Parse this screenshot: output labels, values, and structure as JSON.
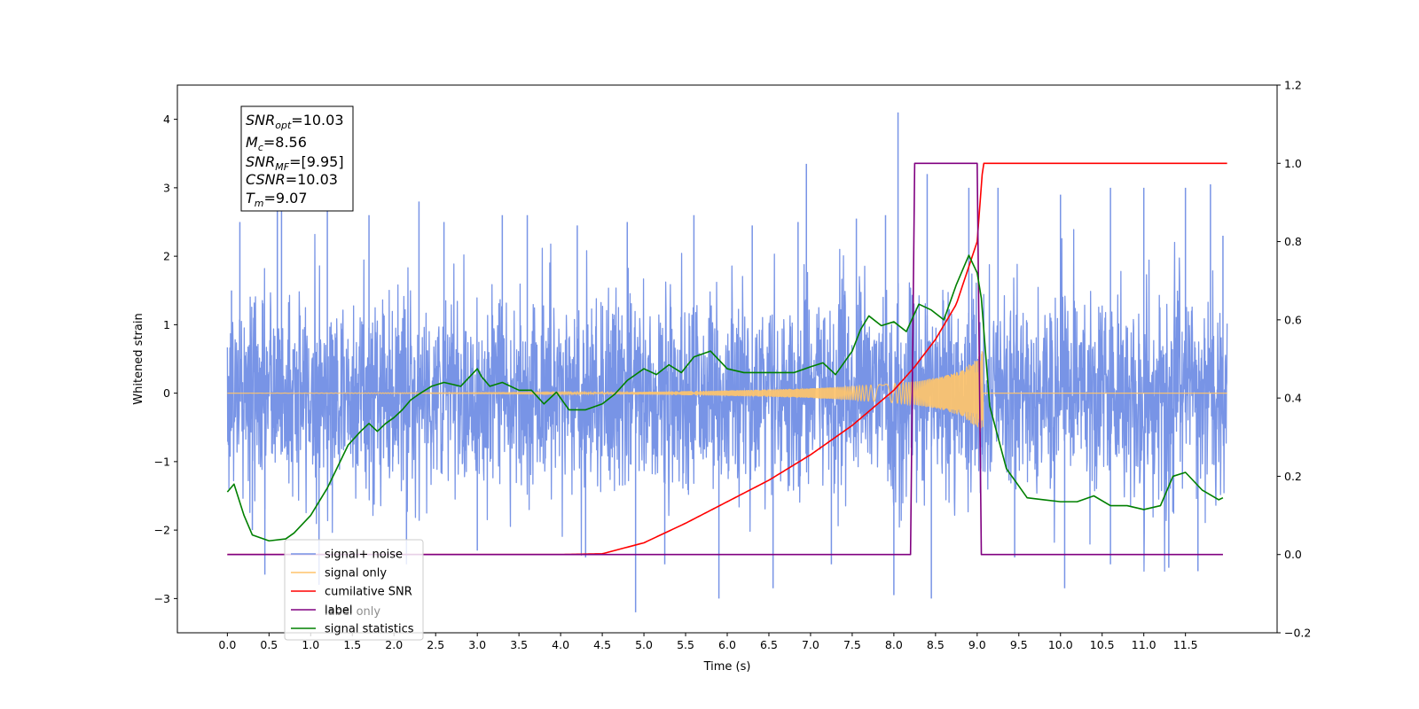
{
  "chart_data": {
    "type": "line",
    "xlabel": "Time (s)",
    "ylabel": "Whitened strain",
    "xlim": [
      -0.6,
      12.6
    ],
    "ylim": [
      -3.5,
      4.5
    ],
    "y2lim": [
      -0.2,
      1.2
    ],
    "x_ticks": [
      0.0,
      0.5,
      1.0,
      1.5,
      2.0,
      2.5,
      3.0,
      3.5,
      4.0,
      4.5,
      5.0,
      5.5,
      6.0,
      6.5,
      7.0,
      7.5,
      8.0,
      8.5,
      9.0,
      9.5,
      10.0,
      10.5,
      11.0,
      11.5
    ],
    "x_tick_labels": [
      "0.0",
      "0.5",
      "1.0",
      "1.5",
      "2.0",
      "2.5",
      "3.0",
      "3.5",
      "4.0",
      "4.5",
      "5.0",
      "5.5",
      "6.0",
      "6.5",
      "7.0",
      "7.5",
      "8.0",
      "8.5",
      "9.0",
      "9.5",
      "10.0",
      "10.5",
      "11.0",
      "11.5"
    ],
    "y_ticks": [
      -3,
      -2,
      -1,
      0,
      1,
      2,
      3,
      4
    ],
    "y_tick_labels": [
      "−3",
      "−2",
      "−1",
      "0",
      "1",
      "2",
      "3",
      "4"
    ],
    "y2_ticks": [
      -0.2,
      0.0,
      0.2,
      0.4,
      0.6,
      0.8,
      1.0,
      1.2
    ],
    "y2_tick_labels": [
      "−0.2",
      "0.0",
      "0.2",
      "0.4",
      "0.6",
      "0.8",
      "1.0",
      "1.2"
    ],
    "grid": false,
    "legend_position": "lower-left",
    "legend": [
      {
        "label": "signal+ noise",
        "color": "#7894e6"
      },
      {
        "label": "signal only",
        "color": "#ffc46b"
      },
      {
        "label": "cumilative SNR",
        "color": "#ff0000"
      },
      {
        "label": "label",
        "color": "#800080"
      },
      {
        "label": "signal statistics",
        "color": "#008000"
      }
    ],
    "legend_ghost_text": "label only",
    "annotation": {
      "snr_opt": {
        "base": "SNR",
        "sub": "opt",
        "value": "=10.03"
      },
      "mc": {
        "base": "M",
        "sub": "c",
        "value": "=8.56"
      },
      "snr_mf": {
        "base": "SNR",
        "sub": "MF",
        "value": "=[9.95]"
      },
      "csnr": {
        "base": "CSNR",
        "value": "=10.03"
      },
      "tm": {
        "base": "T",
        "sub": "m",
        "value": "=9.07"
      }
    },
    "series": [
      {
        "name": "signal+ noise",
        "axis": "left",
        "color": "#7894e6",
        "x_range": [
          0.0,
          12.0
        ],
        "band_lower": -1.5,
        "band_upper": 1.5,
        "spikes": [
          {
            "x": 0.05,
            "y": 1.5
          },
          {
            "x": 0.15,
            "y": 2.5
          },
          {
            "x": 0.3,
            "y": -2.0
          },
          {
            "x": 0.6,
            "y": 2.9
          },
          {
            "x": 0.45,
            "y": -2.65
          },
          {
            "x": 0.65,
            "y": 3.15
          },
          {
            "x": 1.2,
            "y": 2.7
          },
          {
            "x": 1.1,
            "y": -2.8
          },
          {
            "x": 1.7,
            "y": 2.6
          },
          {
            "x": 2.3,
            "y": 2.8
          },
          {
            "x": 2.15,
            "y": -2.5
          },
          {
            "x": 2.6,
            "y": 2.5
          },
          {
            "x": 3.3,
            "y": 2.6
          },
          {
            "x": 3.0,
            "y": -2.3
          },
          {
            "x": 3.6,
            "y": 2.6
          },
          {
            "x": 4.2,
            "y": 2.45
          },
          {
            "x": 4.3,
            "y": -2.4
          },
          {
            "x": 4.8,
            "y": 2.5
          },
          {
            "x": 4.9,
            "y": -3.2
          },
          {
            "x": 5.25,
            "y": -2.5
          },
          {
            "x": 5.6,
            "y": 2.6
          },
          {
            "x": 5.9,
            "y": -3.0
          },
          {
            "x": 6.3,
            "y": 2.45
          },
          {
            "x": 6.55,
            "y": -2.85
          },
          {
            "x": 6.85,
            "y": 2.5
          },
          {
            "x": 6.95,
            "y": 3.35
          },
          {
            "x": 7.25,
            "y": -2.5
          },
          {
            "x": 7.55,
            "y": 2.55
          },
          {
            "x": 7.9,
            "y": 2.6
          },
          {
            "x": 8.0,
            "y": -2.95
          },
          {
            "x": 8.05,
            "y": 4.1
          },
          {
            "x": 8.4,
            "y": 3.2
          },
          {
            "x": 8.45,
            "y": -3.0
          },
          {
            "x": 8.9,
            "y": 3.0
          },
          {
            "x": 9.25,
            "y": 3.0
          },
          {
            "x": 9.45,
            "y": -2.4
          },
          {
            "x": 10.0,
            "y": 2.9
          },
          {
            "x": 10.05,
            "y": -2.85
          },
          {
            "x": 10.6,
            "y": 3.0
          },
          {
            "x": 10.6,
            "y": -2.5
          },
          {
            "x": 11.0,
            "y": 3.0
          },
          {
            "x": 11.3,
            "y": -2.55
          },
          {
            "x": 11.5,
            "y": 3.0
          },
          {
            "x": 11.65,
            "y": -2.6
          },
          {
            "x": 11.8,
            "y": 3.05
          },
          {
            "x": 11.95,
            "y": 2.3
          }
        ]
      },
      {
        "name": "signal only",
        "axis": "left",
        "color": "#ffc46b",
        "envelope": {
          "x": [
            0.0,
            4.5,
            6.0,
            7.0,
            7.5,
            8.0,
            8.3,
            8.6,
            8.8,
            9.0,
            9.06
          ],
          "amp": [
            0.0,
            0.01,
            0.04,
            0.07,
            0.1,
            0.14,
            0.18,
            0.25,
            0.33,
            0.5,
            0.62
          ]
        },
        "signal_end": 9.07
      },
      {
        "name": "cumilative SNR",
        "axis": "right",
        "color": "#ff0000",
        "x": [
          0.0,
          4.0,
          4.5,
          5.0,
          5.5,
          6.0,
          6.5,
          7.0,
          7.5,
          8.0,
          8.25,
          8.5,
          8.75,
          9.0,
          9.07,
          12.0
        ],
        "y": [
          0.0,
          0.0,
          0.002,
          0.03,
          0.08,
          0.135,
          0.19,
          0.255,
          0.33,
          0.42,
          0.48,
          0.55,
          0.64,
          0.8,
          1.0,
          1.0
        ]
      },
      {
        "name": "label",
        "axis": "right",
        "color": "#800080",
        "x": [
          0.0,
          8.2,
          8.25,
          9.0,
          9.05,
          11.95
        ],
        "y": [
          0.0,
          0.0,
          1.0,
          1.0,
          0.0,
          0.0
        ]
      },
      {
        "name": "signal statistics",
        "axis": "right",
        "color": "#008000",
        "x": [
          0.0,
          0.08,
          0.2,
          0.3,
          0.5,
          0.7,
          0.8,
          1.0,
          1.2,
          1.45,
          1.6,
          1.7,
          1.8,
          1.9,
          2.0,
          2.1,
          2.2,
          2.3,
          2.45,
          2.6,
          2.8,
          3.0,
          3.05,
          3.15,
          3.3,
          3.5,
          3.65,
          3.8,
          3.95,
          4.1,
          4.3,
          4.5,
          4.65,
          4.8,
          5.0,
          5.15,
          5.3,
          5.45,
          5.6,
          5.8,
          6.0,
          6.2,
          6.4,
          6.6,
          6.8,
          7.0,
          7.15,
          7.3,
          7.5,
          7.6,
          7.7,
          7.85,
          8.0,
          8.15,
          8.3,
          8.45,
          8.6,
          8.75,
          8.9,
          9.0,
          9.05,
          9.15,
          9.35,
          9.6,
          9.8,
          10.0,
          10.2,
          10.4,
          10.6,
          10.8,
          11.0,
          11.2,
          11.35,
          11.5,
          11.7,
          11.9,
          11.95
        ],
        "y": [
          0.16,
          0.18,
          0.1,
          0.05,
          0.035,
          0.04,
          0.055,
          0.1,
          0.17,
          0.28,
          0.315,
          0.335,
          0.315,
          0.335,
          0.35,
          0.37,
          0.395,
          0.41,
          0.43,
          0.44,
          0.43,
          0.475,
          0.455,
          0.43,
          0.44,
          0.42,
          0.42,
          0.385,
          0.415,
          0.37,
          0.37,
          0.385,
          0.41,
          0.445,
          0.475,
          0.46,
          0.485,
          0.465,
          0.505,
          0.52,
          0.475,
          0.465,
          0.465,
          0.465,
          0.465,
          0.48,
          0.49,
          0.46,
          0.52,
          0.575,
          0.61,
          0.585,
          0.595,
          0.57,
          0.64,
          0.625,
          0.6,
          0.69,
          0.765,
          0.72,
          0.655,
          0.38,
          0.22,
          0.145,
          0.14,
          0.135,
          0.135,
          0.15,
          0.125,
          0.125,
          0.115,
          0.125,
          0.2,
          0.21,
          0.165,
          0.14,
          0.145
        ]
      }
    ]
  }
}
